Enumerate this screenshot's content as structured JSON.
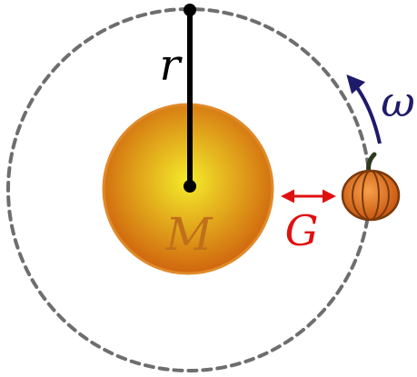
{
  "labels": {
    "radius": "r",
    "angular_velocity": "ω",
    "mass": "M",
    "gravity": "G"
  },
  "colors": {
    "orbit": "#6e6e6e",
    "rod": "#000000",
    "star_center": "#f4ec2a",
    "star_edge": "#d0650e",
    "star_rim": "#e08a2a",
    "mass_label": "#c0701a",
    "omega": "#1f1b6b",
    "gravity": "#e01010",
    "pumpkin_body": "#e2761d",
    "pumpkin_ribs": "#7a3a0c",
    "pumpkin_stem": "#2c3a1e"
  }
}
